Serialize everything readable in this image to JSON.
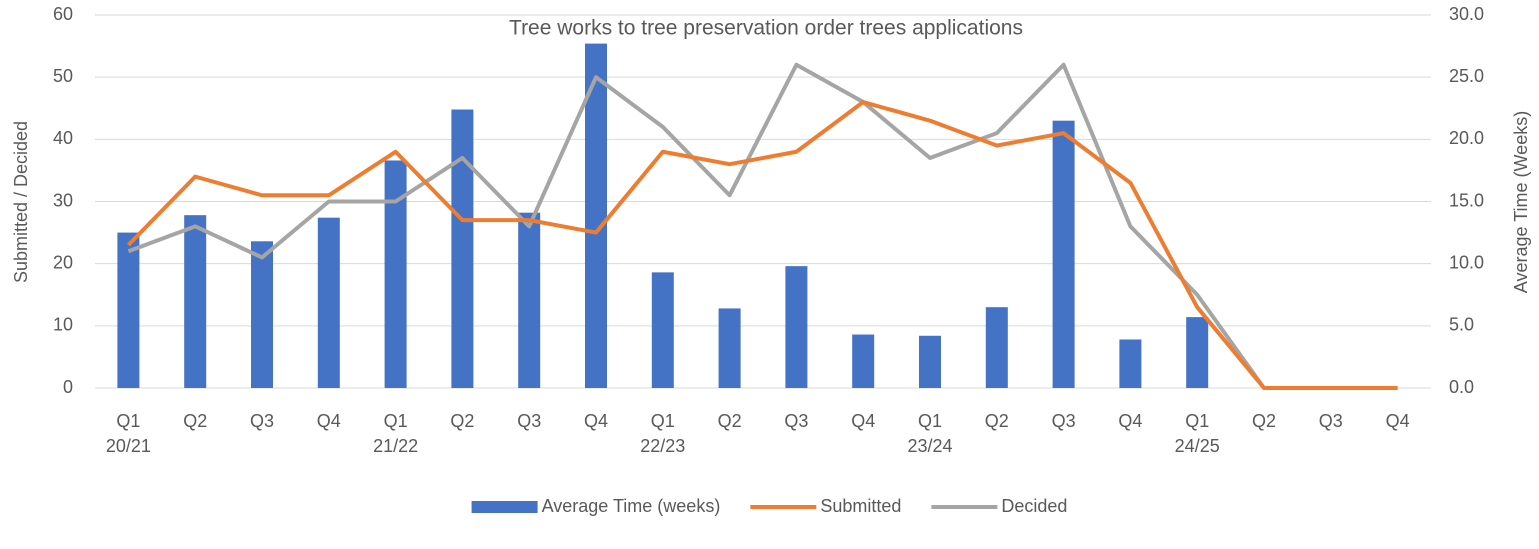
{
  "chart_data": {
    "type": "bar_line",
    "title": "Tree works to tree preservation order trees applications",
    "y_label": "Submitted / Decided",
    "y2_label": "Average Time (Weeks)",
    "categories": [
      "Q1",
      "Q2",
      "Q3",
      "Q4",
      "Q1",
      "Q2",
      "Q3",
      "Q4",
      "Q1",
      "Q2",
      "Q3",
      "Q4",
      "Q1",
      "Q2",
      "Q3",
      "Q4",
      "Q1",
      "Q2",
      "Q3",
      "Q4"
    ],
    "category_groups": [
      "20/21",
      "21/22",
      "22/23",
      "23/24",
      "24/25"
    ],
    "ylim": [
      0,
      60
    ],
    "yticks": [
      0,
      10,
      20,
      30,
      40,
      50,
      60
    ],
    "y2lim": [
      0,
      30
    ],
    "y2ticks": [
      {
        "value": 0,
        "label": "0.0"
      },
      {
        "value": 5,
        "label": "5.0"
      },
      {
        "value": 10,
        "label": "10.0"
      },
      {
        "value": 15,
        "label": "15.0"
      },
      {
        "value": 20,
        "label": "20.0"
      },
      {
        "value": 25,
        "label": "25.0"
      },
      {
        "value": 30,
        "label": "30.0"
      }
    ],
    "grid": true,
    "legend": "bottom",
    "series": [
      {
        "name": "Average Time (weeks)",
        "type": "bar",
        "axis": "y2",
        "color": "#4472c4",
        "values": [
          12.5,
          13.9,
          11.8,
          13.7,
          18.3,
          22.4,
          14.1,
          27.7,
          9.3,
          6.4,
          9.8,
          4.3,
          4.2,
          6.5,
          21.5,
          3.9,
          5.7,
          0,
          0,
          0
        ]
      },
      {
        "name": "Submitted",
        "type": "line",
        "color": "#ed7d31",
        "values": [
          23,
          34,
          31,
          31,
          38,
          27,
          27,
          25,
          38,
          36,
          38,
          46,
          43,
          39,
          41,
          33,
          13,
          0,
          0,
          0
        ]
      },
      {
        "name": "Decided",
        "type": "line",
        "color": "#a5a5a5",
        "values": [
          22,
          26,
          21,
          30,
          30,
          37,
          26,
          50,
          42,
          31,
          52,
          46,
          37,
          41,
          52,
          26,
          15,
          0,
          0,
          0
        ]
      }
    ]
  }
}
